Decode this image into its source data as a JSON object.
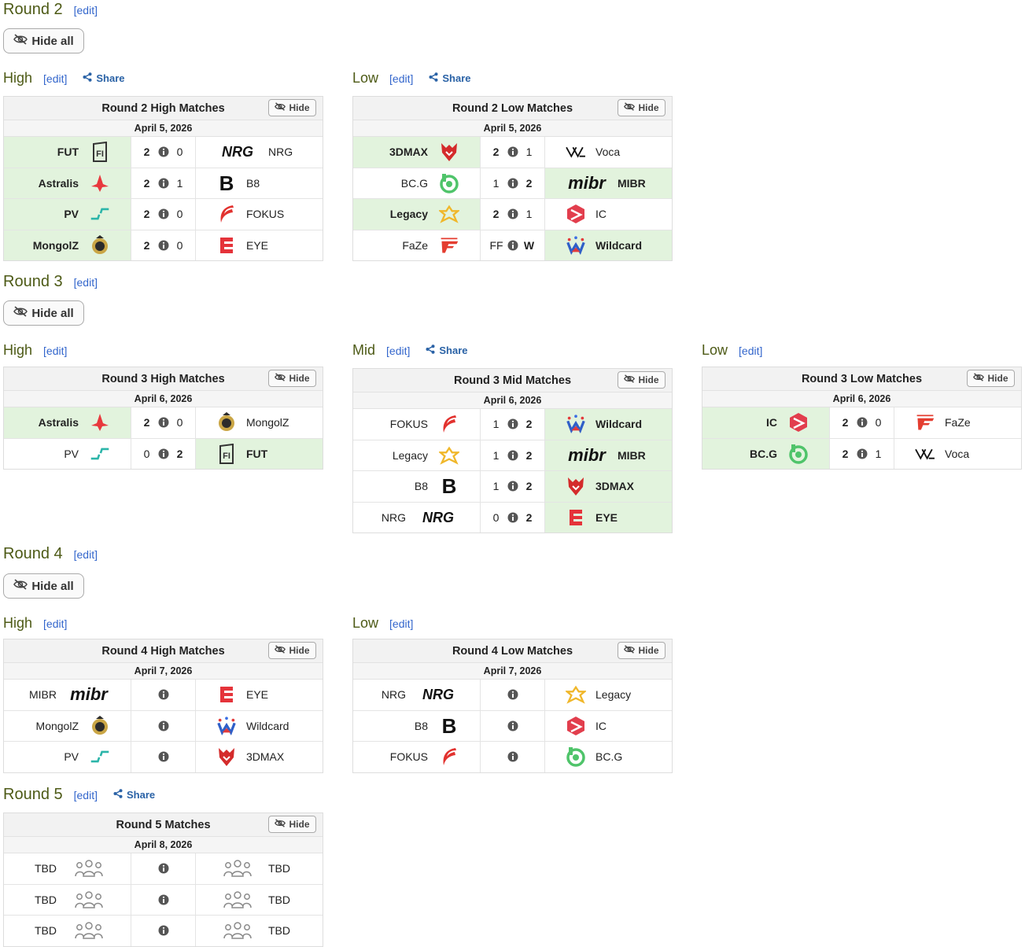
{
  "common": {
    "edit": "[edit]",
    "share": "Share",
    "hide": "Hide",
    "hide_all": "Hide all"
  },
  "rounds": [
    {
      "title": "Round 2",
      "subtitles": {
        "high": "High",
        "low": "Low"
      },
      "tables": [
        {
          "title": "Round 2 High Matches",
          "date": "April 5, 2026",
          "matches": [
            {
              "left": "FUT",
              "ls": "2",
              "rs": "0",
              "right": "NRG",
              "winner": "left"
            },
            {
              "left": "Astralis",
              "ls": "2",
              "rs": "1",
              "right": "B8",
              "winner": "left"
            },
            {
              "left": "PV",
              "ls": "2",
              "rs": "0",
              "right": "FOKUS",
              "winner": "left"
            },
            {
              "left": "MongolZ",
              "ls": "2",
              "rs": "0",
              "right": "EYE",
              "winner": "left"
            }
          ]
        },
        {
          "title": "Round 2 Low Matches",
          "date": "April 5, 2026",
          "matches": [
            {
              "left": "3DMAX",
              "ls": "2",
              "rs": "1",
              "right": "Voca",
              "winner": "left"
            },
            {
              "left": "BC.G",
              "ls": "1",
              "rs": "2",
              "right": "MIBR",
              "winner": "right"
            },
            {
              "left": "Legacy",
              "ls": "2",
              "rs": "1",
              "right": "IC",
              "winner": "left"
            },
            {
              "left": "FaZe",
              "ls": "FF",
              "rs": "W",
              "right": "Wildcard",
              "winner": "right"
            }
          ]
        }
      ]
    },
    {
      "title": "Round 3",
      "subtitles": {
        "high": "High",
        "mid": "Mid",
        "low": "Low"
      },
      "tables": [
        {
          "title": "Round 3 High Matches",
          "date": "April 6, 2026",
          "matches": [
            {
              "left": "Astralis",
              "ls": "2",
              "rs": "0",
              "right": "MongolZ",
              "winner": "left"
            },
            {
              "left": "PV",
              "ls": "0",
              "rs": "2",
              "right": "FUT",
              "winner": "right"
            }
          ]
        },
        {
          "title": "Round 3 Mid Matches",
          "date": "April 6, 2026",
          "matches": [
            {
              "left": "FOKUS",
              "ls": "1",
              "rs": "2",
              "right": "Wildcard",
              "winner": "right"
            },
            {
              "left": "Legacy",
              "ls": "1",
              "rs": "2",
              "right": "MIBR",
              "winner": "right"
            },
            {
              "left": "B8",
              "ls": "1",
              "rs": "2",
              "right": "3DMAX",
              "winner": "right"
            },
            {
              "left": "NRG",
              "ls": "0",
              "rs": "2",
              "right": "EYE",
              "winner": "right"
            }
          ]
        },
        {
          "title": "Round 3 Low Matches",
          "date": "April 6, 2026",
          "matches": [
            {
              "left": "IC",
              "ls": "2",
              "rs": "0",
              "right": "FaZe",
              "winner": "left"
            },
            {
              "left": "BC.G",
              "ls": "2",
              "rs": "1",
              "right": "Voca",
              "winner": "left"
            }
          ]
        }
      ]
    },
    {
      "title": "Round 4",
      "subtitles": {
        "high": "High",
        "low": "Low"
      },
      "tables": [
        {
          "title": "Round 4 High Matches",
          "date": "April 7, 2026",
          "matches": [
            {
              "left": "MIBR",
              "ls": "",
              "rs": "",
              "right": "EYE",
              "winner": ""
            },
            {
              "left": "MongolZ",
              "ls": "",
              "rs": "",
              "right": "Wildcard",
              "winner": ""
            },
            {
              "left": "PV",
              "ls": "",
              "rs": "",
              "right": "3DMAX",
              "winner": ""
            }
          ]
        },
        {
          "title": "Round 4 Low Matches",
          "date": "April 7, 2026",
          "matches": [
            {
              "left": "NRG",
              "ls": "",
              "rs": "",
              "right": "Legacy",
              "winner": ""
            },
            {
              "left": "B8",
              "ls": "",
              "rs": "",
              "right": "IC",
              "winner": ""
            },
            {
              "left": "FOKUS",
              "ls": "",
              "rs": "",
              "right": "BC.G",
              "winner": ""
            }
          ]
        }
      ]
    },
    {
      "title": "Round 5",
      "tables": [
        {
          "title": "Round 5 Matches",
          "date": "April 8, 2026",
          "matches": [
            {
              "left": "TBD",
              "ls": "",
              "rs": "",
              "right": "TBD",
              "winner": ""
            },
            {
              "left": "TBD",
              "ls": "",
              "rs": "",
              "right": "TBD",
              "winner": ""
            },
            {
              "left": "TBD",
              "ls": "",
              "rs": "",
              "right": "TBD",
              "winner": ""
            }
          ]
        }
      ]
    }
  ],
  "logos": {
    "NRG": "NRG",
    "MIBR": "mibr",
    "B8": "B"
  },
  "colors": {
    "heading": "#4d5a16",
    "link": "#3366cc",
    "winner_bg": "#e2f3dd",
    "header_bg": "#f2f2f2"
  }
}
